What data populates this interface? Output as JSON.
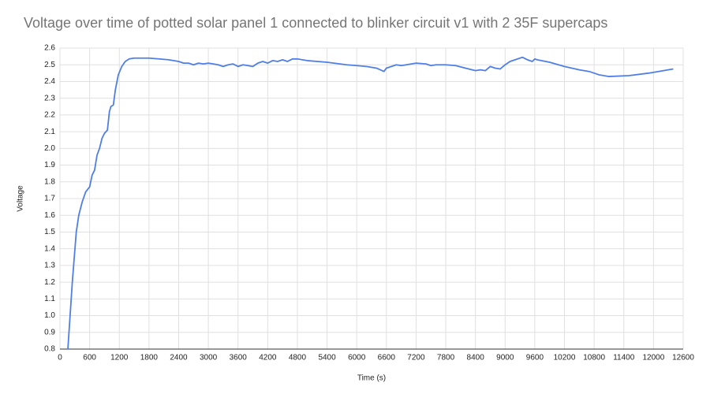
{
  "chart_data": {
    "type": "line",
    "title": "Voltage over time of potted solar panel 1 connected to blinker circuit v1 with 2 35F supercaps",
    "x_label": "Time (s)",
    "y_label": "Voltage",
    "grid": true,
    "x": [
      160,
      250,
      330,
      380,
      450,
      520,
      600,
      650,
      700,
      750,
      800,
      850,
      900,
      960,
      1000,
      1030,
      1080,
      1120,
      1180,
      1250,
      1320,
      1400,
      1500,
      1800,
      2000,
      2200,
      2400,
      2500,
      2600,
      2700,
      2800,
      2900,
      3000,
      3100,
      3200,
      3300,
      3400,
      3500,
      3600,
      3700,
      3800,
      3900,
      4000,
      4100,
      4200,
      4300,
      4400,
      4500,
      4600,
      4700,
      4800,
      5000,
      5400,
      5800,
      6000,
      6200,
      6400,
      6550,
      6600,
      6700,
      6800,
      6900,
      7000,
      7200,
      7400,
      7500,
      7600,
      7800,
      8000,
      8200,
      8400,
      8500,
      8600,
      8700,
      8800,
      8900,
      9000,
      9100,
      9200,
      9350,
      9450,
      9550,
      9600,
      9650,
      9900,
      10200,
      10500,
      10700,
      10900,
      11100,
      11500,
      11900,
      12100,
      12400
    ],
    "series": [
      {
        "name": "Voltage",
        "color": "#4f7fe6",
        "values": [
          0.8,
          1.2,
          1.5,
          1.6,
          1.68,
          1.74,
          1.77,
          1.84,
          1.87,
          1.96,
          2.0,
          2.06,
          2.09,
          2.11,
          2.22,
          2.25,
          2.26,
          2.35,
          2.44,
          2.49,
          2.52,
          2.535,
          2.54,
          2.54,
          2.535,
          2.53,
          2.52,
          2.51,
          2.51,
          2.5,
          2.51,
          2.505,
          2.51,
          2.505,
          2.5,
          2.49,
          2.5,
          2.505,
          2.49,
          2.5,
          2.495,
          2.49,
          2.51,
          2.52,
          2.51,
          2.525,
          2.52,
          2.53,
          2.52,
          2.535,
          2.535,
          2.525,
          2.515,
          2.5,
          2.495,
          2.49,
          2.48,
          2.46,
          2.48,
          2.49,
          2.5,
          2.495,
          2.5,
          2.51,
          2.505,
          2.495,
          2.5,
          2.5,
          2.495,
          2.48,
          2.465,
          2.47,
          2.465,
          2.49,
          2.48,
          2.475,
          2.5,
          2.52,
          2.53,
          2.545,
          2.53,
          2.52,
          2.535,
          2.53,
          2.515,
          2.49,
          2.47,
          2.46,
          2.44,
          2.43,
          2.435,
          2.45,
          2.46,
          2.475
        ]
      }
    ],
    "xlim": [
      0,
      12600
    ],
    "xticks": [
      0,
      600,
      1200,
      1800,
      2400,
      3000,
      3600,
      4200,
      4800,
      5400,
      6000,
      6600,
      7200,
      7800,
      8400,
      9000,
      9600,
      10200,
      10800,
      11400,
      12000,
      12600
    ],
    "ylim": [
      0.8,
      2.6
    ],
    "yticks": [
      0.8,
      0.9,
      {
        "value": 1,
        "label": "1.0"
      },
      1.1,
      1.2,
      1.3,
      1.4,
      1.5,
      1.6,
      1.7,
      1.8,
      1.9,
      {
        "value": 2,
        "label": "2.0"
      },
      2.1,
      2.2,
      2.3,
      2.4,
      2.5,
      2.6
    ]
  }
}
